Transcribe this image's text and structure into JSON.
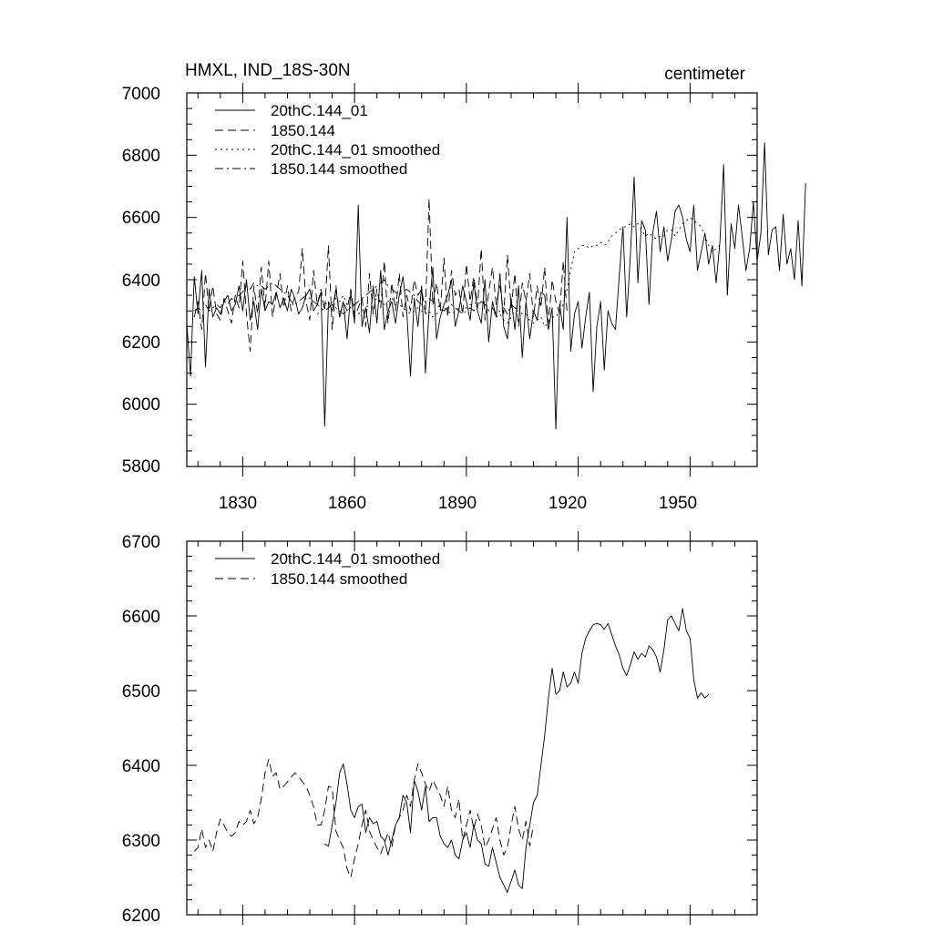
{
  "chart_data": [
    {
      "type": "line",
      "title_left": "HMXL, IND_18S-30N",
      "title_right": "centimeter",
      "xlabel": "",
      "ylabel": "",
      "xlim": [
        1815,
        1968
      ],
      "ylim": [
        5800,
        7000
      ],
      "xticks": [
        1830,
        1860,
        1890,
        1920,
        1950
      ],
      "yticks": [
        5800,
        6000,
        6200,
        6400,
        6600,
        6800,
        7000
      ],
      "legend_position": "top-left",
      "series": [
        {
          "name": "20thC.144_01",
          "style": "solid",
          "x_start": 1815,
          "values": [
            6260,
            6090,
            6410,
            6290,
            6430,
            6120,
            6370,
            6280,
            6310,
            6290,
            6330,
            6350,
            6300,
            6320,
            6380,
            6300,
            6400,
            6270,
            6330,
            6240,
            6370,
            6300,
            6330,
            6320,
            6360,
            6310,
            6340,
            6300,
            6370,
            6340,
            6290,
            6310,
            6350,
            6370,
            6300,
            6320,
            6360,
            5930,
            6330,
            6300,
            6370,
            6280,
            6330,
            6210,
            6360,
            6260,
            6640,
            6250,
            6310,
            6230,
            6380,
            6260,
            6430,
            6240,
            6300,
            6330,
            6260,
            6350,
            6410,
            6300,
            6090,
            6340,
            6250,
            6380,
            6100,
            6300,
            6440,
            6210,
            6280,
            6320,
            6350,
            6400,
            6250,
            6300,
            6380,
            6330,
            6270,
            6390,
            6300,
            6260,
            6400,
            6200,
            6330,
            6280,
            6420,
            6250,
            6210,
            6340,
            6240,
            6380,
            6150,
            6330,
            6210,
            6300,
            6270,
            6360,
            6350,
            6240,
            6310,
            5920,
            6320,
            6240,
            6600,
            6170,
            6290,
            6330,
            6180,
            6280,
            6360,
            6040,
            6250,
            6330,
            6110,
            6300,
            6260,
            6240,
            6410,
            6570,
            6280,
            6480,
            6730,
            6390,
            6590,
            6560,
            6320,
            6550,
            6620,
            6490,
            6570,
            6460,
            6530,
            6620,
            6640,
            6600,
            6530,
            6490,
            6640,
            6430,
            6490,
            6550,
            6450,
            6510,
            6390,
            6520,
            6770,
            6350,
            6580,
            6500,
            6640,
            6540,
            6430,
            6500,
            6650,
            6460,
            6550,
            6840,
            6480,
            6560,
            6570,
            6430,
            6610,
            6450,
            6500,
            6400,
            6590,
            6380,
            6710
          ]
        },
        {
          "name": "1850.144",
          "style": "dashed",
          "x_start": 1817,
          "values": [
            6280,
            6330,
            6240,
            6420,
            6300,
            6380,
            6290,
            6270,
            6340,
            6300,
            6260,
            6350,
            6310,
            6460,
            6290,
            6170,
            6380,
            6290,
            6440,
            6310,
            6460,
            6280,
            6350,
            6420,
            6310,
            6380,
            6300,
            6350,
            6360,
            6500,
            6330,
            6270,
            6430,
            6320,
            6370,
            6300,
            6510,
            6240,
            6380,
            6280,
            6330,
            6300,
            6370,
            6280,
            6310,
            6340,
            6250,
            6420,
            6290,
            6370,
            6310,
            6460,
            6260,
            6390,
            6300,
            6420,
            6280,
            6350,
            6300,
            6400,
            6350,
            6370,
            6290,
            6660,
            6320,
            6390,
            6300,
            6470,
            6280,
            6430,
            6350,
            6370,
            6290,
            6450,
            6330,
            6410,
            6310,
            6500,
            6270,
            6360,
            6440,
            6320,
            6380,
            6290,
            6480,
            6310,
            6420,
            6250,
            6390,
            6330,
            6420,
            6280,
            6380,
            6310,
            6440,
            6260,
            6400,
            6330,
            6290,
            6460,
            6300
          ]
        },
        {
          "name": "20thC.144_01 smoothed",
          "style": "dotted",
          "x_start": 1850,
          "values": [
            6290,
            6300,
            6330,
            6310,
            6330,
            6340,
            6330,
            6350,
            6320,
            6310,
            6300,
            6290,
            6300,
            6310,
            6320,
            6330,
            6340,
            6330,
            6320,
            6330,
            6340,
            6330,
            6320,
            6310,
            6300,
            6290,
            6300,
            6310,
            6300,
            6290,
            6300,
            6280,
            6290,
            6300,
            6310,
            6300,
            6290,
            6300,
            6310,
            6300,
            6310,
            6320,
            6320,
            6330,
            6320,
            6330,
            6300,
            6310,
            6280,
            6290,
            6270,
            6260,
            6280,
            6300,
            6300,
            6290,
            6290,
            6270,
            6260,
            6270,
            6280,
            6250,
            6260,
            6280,
            6280,
            6300,
            6320,
            6370,
            6430,
            6490,
            6500,
            6510,
            6510,
            6500,
            6510,
            6510,
            6520,
            6510,
            6520,
            6540,
            6550,
            6560,
            6570,
            6570,
            6580,
            6570,
            6580,
            6560,
            6540,
            6550,
            6540,
            6530,
            6540,
            6540,
            6560,
            6560,
            6540,
            6560,
            6580,
            6590,
            6600,
            6590,
            6580,
            6570,
            6540,
            6510,
            6490,
            6500,
            6510
          ]
        },
        {
          "name": "1850.144 smoothed",
          "style": "dashdot",
          "x_start": 1817,
          "values": [
            6300,
            6310,
            6300,
            6320,
            6300,
            6310,
            6320,
            6310,
            6330,
            6320,
            6340,
            6330,
            6350,
            6360,
            6380,
            6370,
            6390,
            6380,
            6380,
            6370,
            6380,
            6390,
            6380,
            6370,
            6360,
            6350,
            6330,
            6320,
            6330,
            6340,
            6350,
            6340,
            6330,
            6320,
            6310,
            6300,
            6310,
            6320,
            6310,
            6300,
            6290,
            6300,
            6310,
            6320,
            6330,
            6340,
            6350,
            6360,
            6370,
            6380,
            6390,
            6400,
            6380,
            6370,
            6360,
            6350,
            6360,
            6370,
            6360,
            6350,
            6330,
            6320,
            6330,
            6340,
            6330,
            6320,
            6310,
            6300,
            6310,
            6320,
            6310,
            6300,
            6290,
            6300,
            6310,
            6300,
            6320,
            6330,
            6320,
            6300,
            6310,
            6290,
            6300,
            6310,
            6290,
            6320,
            6310,
            6300
          ]
        }
      ]
    },
    {
      "type": "line",
      "title_left": "",
      "title_right": "",
      "xlabel": "",
      "ylabel": "",
      "xlim": [
        1815,
        1968
      ],
      "ylim": [
        6200,
        6700
      ],
      "yticks": [
        6200,
        6300,
        6400,
        6500,
        6600,
        6700
      ],
      "legend_position": "top-left",
      "series": [
        {
          "name": "20thC.144_01 smoothed",
          "style": "solid",
          "x_start": 1852,
          "values": [
            6295,
            6292,
            6320,
            6350,
            6390,
            6402,
            6375,
            6340,
            6330,
            6345,
            6348,
            6310,
            6330,
            6322,
            6325,
            6305,
            6300,
            6280,
            6300,
            6320,
            6330,
            6360,
            6350,
            6310,
            6380,
            6365,
            6340,
            6372,
            6325,
            6330,
            6330,
            6305,
            6295,
            6290,
            6300,
            6280,
            6275,
            6300,
            6310,
            6290,
            6320,
            6300,
            6295,
            6268,
            6265,
            6290,
            6270,
            6250,
            6240,
            6230,
            6245,
            6260,
            6240,
            6235,
            6290,
            6320,
            6350,
            6360,
            6400,
            6440,
            6490,
            6530,
            6495,
            6500,
            6525,
            6505,
            6510,
            6525,
            6510,
            6550,
            6570,
            6580,
            6588,
            6590,
            6588,
            6582,
            6590,
            6575,
            6560,
            6548,
            6530,
            6520,
            6535,
            6552,
            6542,
            6550,
            6545,
            6560,
            6555,
            6545,
            6525,
            6555,
            6595,
            6600,
            6590,
            6580,
            6610,
            6580,
            6570,
            6515,
            6490,
            6497,
            6490,
            6495
          ]
        },
        {
          "name": "1850.144 smoothed",
          "style": "dashed",
          "x_start": 1817,
          "values": [
            6285,
            6290,
            6315,
            6290,
            6300,
            6285,
            6310,
            6328,
            6320,
            6310,
            6305,
            6310,
            6325,
            6320,
            6325,
            6340,
            6322,
            6330,
            6355,
            6390,
            6408,
            6385,
            6390,
            6368,
            6372,
            6378,
            6384,
            6390,
            6385,
            6378,
            6372,
            6360,
            6345,
            6320,
            6320,
            6340,
            6372,
            6370,
            6312,
            6300,
            6290,
            6262,
            6250,
            6275,
            6295,
            6320,
            6340,
            6312,
            6300,
            6290,
            6282,
            6295,
            6310,
            6290,
            6320,
            6330,
            6340,
            6360,
            6345,
            6380,
            6402,
            6390,
            6375,
            6365,
            6380,
            6370,
            6360,
            6345,
            6372,
            6340,
            6330,
            6355,
            6300,
            6320,
            6340,
            6315,
            6335,
            6320,
            6290,
            6300,
            6315,
            6330,
            6300,
            6280,
            6290,
            6320,
            6345,
            6315,
            6300,
            6325,
            6292,
            6320
          ]
        }
      ]
    }
  ]
}
